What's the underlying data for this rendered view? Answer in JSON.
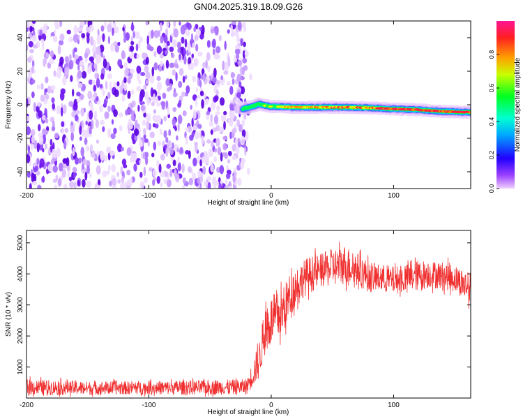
{
  "title": "GN04.2025.319.18.09.G26",
  "colorbar": {
    "label": "Normalized spectral amplitude",
    "ticks": [
      "0.0",
      "0.2",
      "0.4",
      "0.6",
      "0.8"
    ],
    "stops": [
      "#e8b4f5",
      "#7a00ff",
      "#0022ff",
      "#00c8ff",
      "#00ff66",
      "#c8ff00",
      "#ffb000",
      "#ff2020",
      "#ff1493"
    ]
  },
  "chart_data": [
    {
      "type": "heatmap",
      "title": "GN04.2025.319.18.09.G26",
      "xlabel": "Height of straight line (km)",
      "ylabel": "Frequency (Hz)",
      "xlim": [
        -200,
        163
      ],
      "ylim": [
        -50,
        50
      ],
      "x_ticks": [
        "-200",
        "-100",
        "0",
        "100"
      ],
      "y_ticks": [
        "-40",
        "-20",
        "0",
        "20",
        "40"
      ],
      "noise_region_x": [
        -200,
        -20
      ],
      "signal_track": {
        "x": [
          -23,
          -15,
          -10,
          -5,
          0,
          20,
          40,
          60,
          80,
          100,
          120,
          140,
          163
        ],
        "freq": [
          -2.5,
          -1,
          0.5,
          -0.5,
          -1,
          -1.5,
          -1.5,
          -1.5,
          -1.8,
          -2.5,
          -3,
          -4,
          -4.5
        ],
        "amplitude": [
          0.4,
          0.5,
          0.45,
          0.55,
          0.6,
          0.75,
          0.85,
          0.8,
          0.85,
          0.9,
          0.95,
          0.9,
          0.95
        ]
      },
      "colorbar_range": [
        0,
        1
      ]
    },
    {
      "type": "line",
      "xlabel": "Height of straight line (km)",
      "ylabel": "SNR (10 * v/v)",
      "xlim": [
        -200,
        163
      ],
      "ylim": [
        0,
        5400
      ],
      "x_ticks": [
        "-200",
        "-100",
        "0",
        "100"
      ],
      "y_ticks": [
        "1000",
        "2000",
        "3000",
        "4000",
        "5000"
      ],
      "series": [
        {
          "color": "#f03030",
          "x": [
            -200,
            -150,
            -100,
            -50,
            -20,
            -10,
            -5,
            0,
            5,
            10,
            15,
            20,
            25,
            30,
            40,
            50,
            60,
            70,
            80,
            90,
            100,
            110,
            120,
            130,
            140,
            150,
            160,
            163
          ],
          "mean": [
            350,
            320,
            330,
            340,
            360,
            1200,
            2200,
            2500,
            2600,
            2800,
            3300,
            3600,
            3800,
            3950,
            4100,
            4200,
            4300,
            4150,
            3900,
            3850,
            3800,
            3850,
            3950,
            4000,
            3950,
            3850,
            3600,
            3550
          ],
          "spread": [
            260,
            220,
            220,
            240,
            250,
            600,
            800,
            800,
            800,
            800,
            700,
            650,
            600,
            600,
            550,
            600,
            650,
            550,
            500,
            450,
            450,
            450,
            500,
            450,
            450,
            450,
            500,
            500
          ]
        }
      ]
    }
  ]
}
